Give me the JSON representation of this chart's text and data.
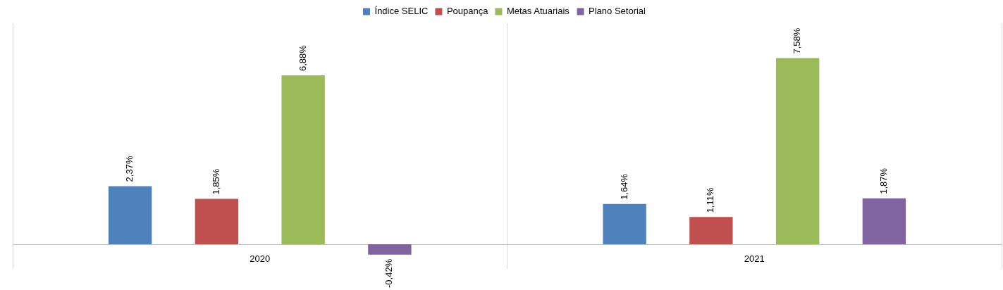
{
  "chart_data": {
    "type": "bar",
    "categories": [
      "2020",
      "2021"
    ],
    "series": [
      {
        "name": "Índice SELIC",
        "color": "#4f81bd",
        "values": [
          2.37,
          1.64
        ],
        "value_labels": [
          "2,37%",
          "1,64%"
        ]
      },
      {
        "name": "Poupança",
        "color": "#c0504d",
        "values": [
          1.85,
          1.11
        ],
        "value_labels": [
          "1,85%",
          "1,11%"
        ]
      },
      {
        "name": "Metas Atuariais",
        "color": "#9bbb59",
        "values": [
          6.88,
          7.58
        ],
        "value_labels": [
          "6,88%",
          "7,58%"
        ]
      },
      {
        "name": "Plano Setorial",
        "color": "#8064a2",
        "values": [
          -0.42,
          1.87
        ],
        "value_labels": [
          "-0,42%",
          "1,87%"
        ]
      }
    ],
    "grid": "x",
    "legend": "top",
    "tick_labels": "x"
  }
}
